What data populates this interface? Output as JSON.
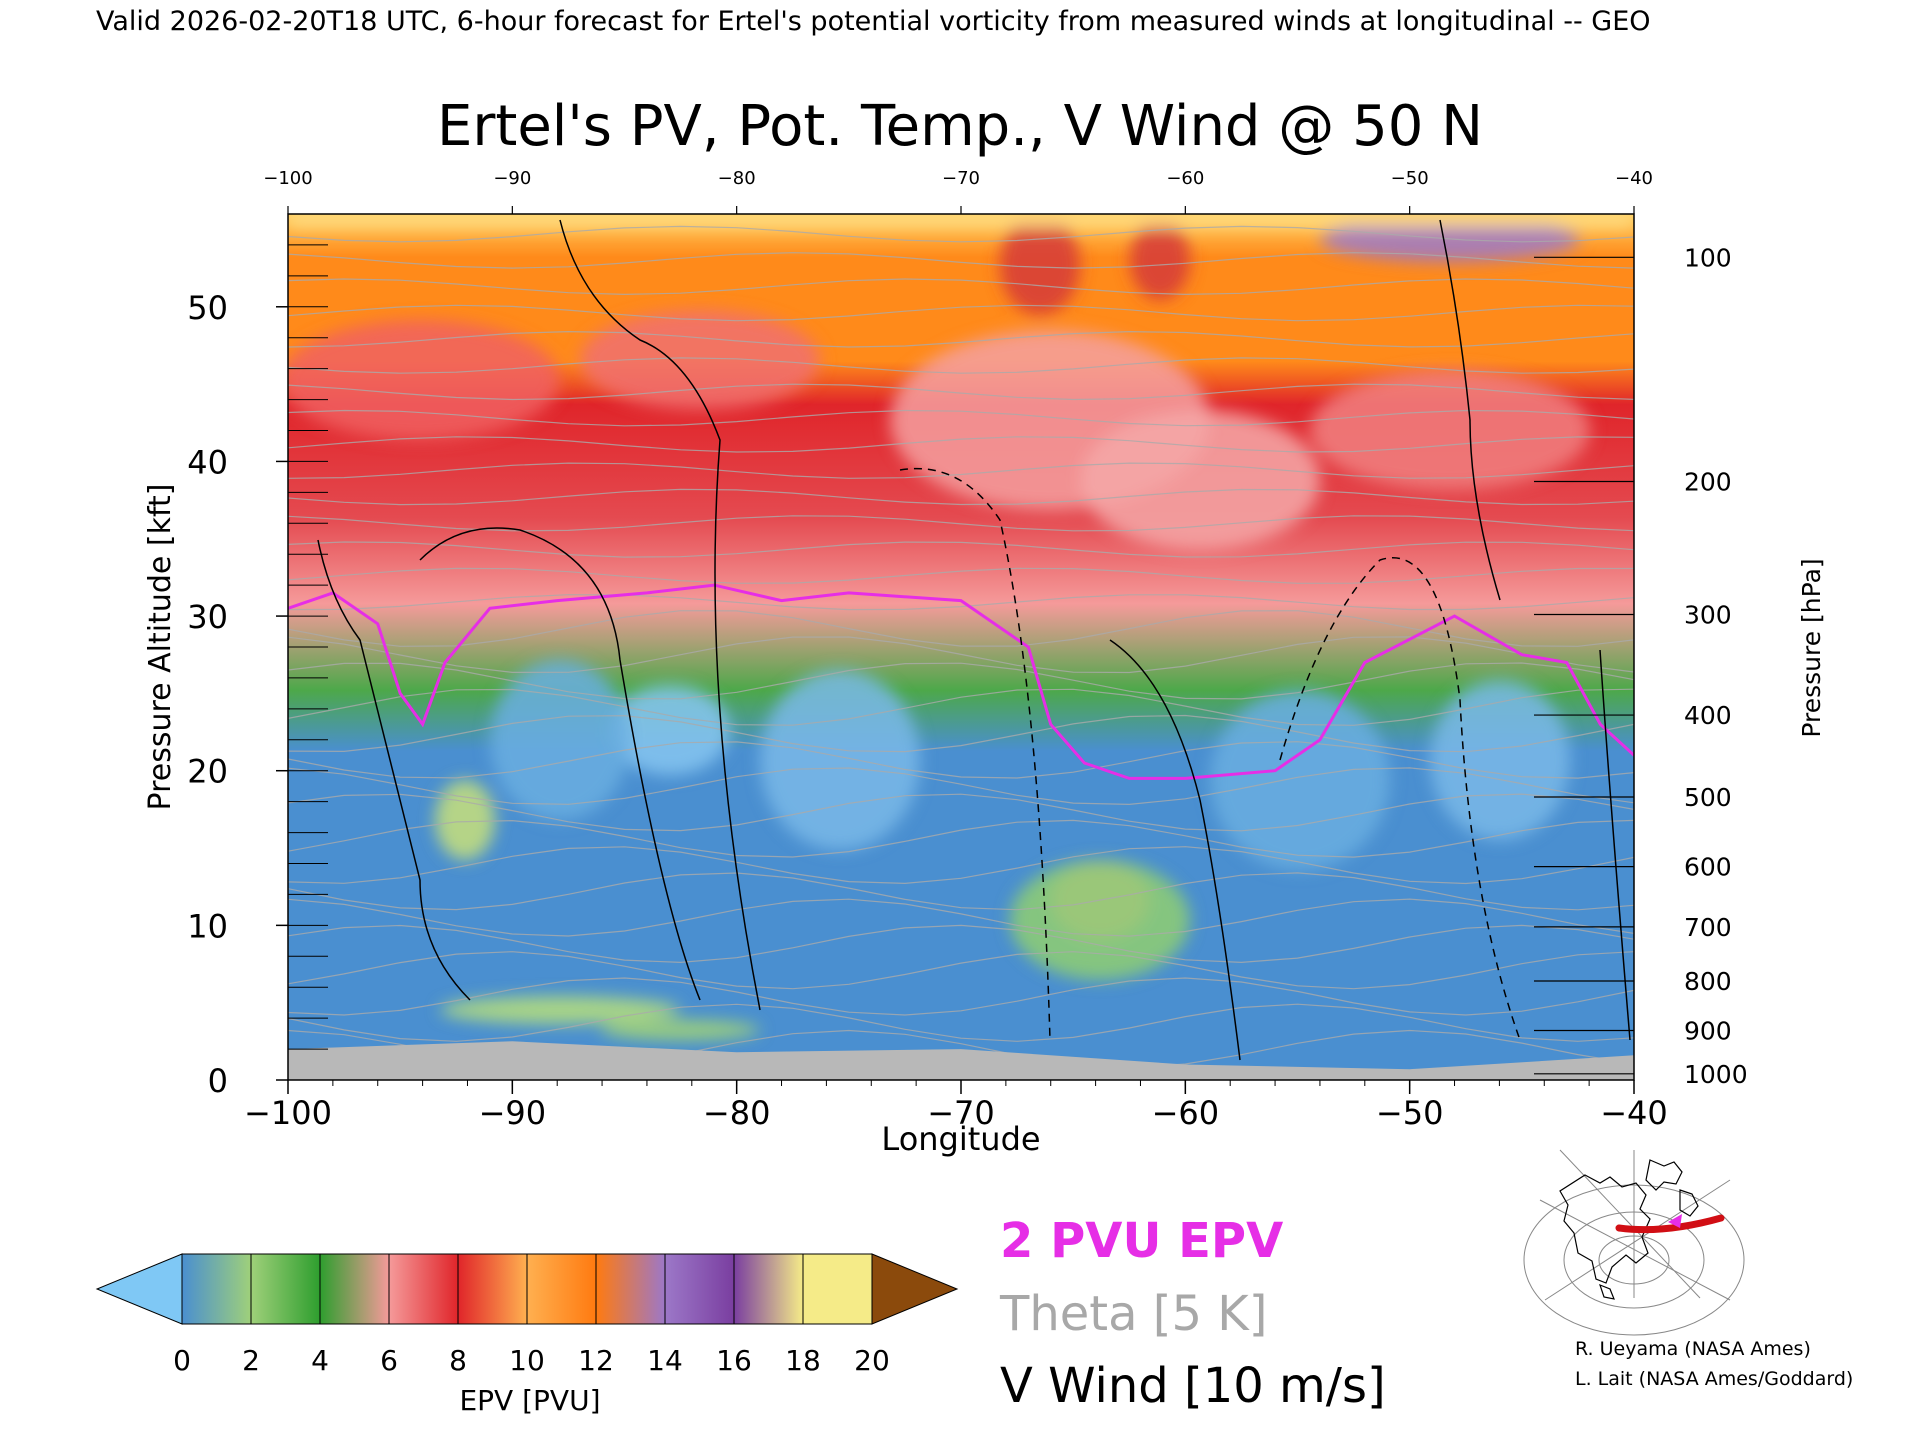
{
  "header": {
    "valid_line": "Valid 2026-02-20T18 UTC, 6-hour forecast for Ertel's potential vorticity from measured winds at longitudinal -- GEO"
  },
  "chart_data": {
    "type": "heatmap",
    "title": "Ertel's PV, Pot. Temp., V Wind @ 50 N",
    "xlabel": "Longitude",
    "ylabel_left": "Pressure Altitude [kft]",
    "ylabel_right": "Pressure [hPa]",
    "xlim": [
      -100,
      -40
    ],
    "ylim_kft": [
      0,
      56
    ],
    "x_ticks": [
      -100,
      -90,
      -80,
      -70,
      -60,
      -50,
      -40
    ],
    "y_ticks_kft": [
      0,
      10,
      20,
      30,
      40,
      50
    ],
    "pressure_ticks": [
      {
        "hpa": 100,
        "kft": 53.2
      },
      {
        "hpa": 200,
        "kft": 38.7
      },
      {
        "hpa": 300,
        "kft": 30.1
      },
      {
        "hpa": 400,
        "kft": 23.6
      },
      {
        "hpa": 500,
        "kft": 18.3
      },
      {
        "hpa": 600,
        "kft": 13.8
      },
      {
        "hpa": 700,
        "kft": 9.9
      },
      {
        "hpa": 800,
        "kft": 6.4
      },
      {
        "hpa": 900,
        "kft": 3.2
      },
      {
        "hpa": 1000,
        "kft": 0.4
      }
    ],
    "colorbar": {
      "label": "EPV [PVU]",
      "ticks": [
        0,
        2,
        4,
        6,
        8,
        10,
        12,
        14,
        16,
        18,
        20
      ],
      "colors": [
        "#4a8fd0",
        "#9fd07a",
        "#2e9e2e",
        "#f59a9a",
        "#e0252a",
        "#ffb050",
        "#ff7a10",
        "#9c78c8",
        "#7a3ea0",
        "#f5eb88"
      ],
      "under_color": "#7fc8f5",
      "over_color": "#8b4a0c"
    },
    "legend": [
      {
        "label": "2 PVU EPV",
        "color": "#e62ee6"
      },
      {
        "label": "Theta [5 K]",
        "color": "#a8a8a8"
      },
      {
        "label": "V Wind [10 m/s]",
        "color": "#000000"
      }
    ],
    "epv_2pvu_contour_kft": [
      {
        "lon": -100,
        "kft": 30.5
      },
      {
        "lon": -98,
        "kft": 31.5
      },
      {
        "lon": -96,
        "kft": 29.5
      },
      {
        "lon": -95,
        "kft": 25
      },
      {
        "lon": -94,
        "kft": 23
      },
      {
        "lon": -93,
        "kft": 27
      },
      {
        "lon": -91,
        "kft": 30.5
      },
      {
        "lon": -88,
        "kft": 31
      },
      {
        "lon": -84,
        "kft": 31.5
      },
      {
        "lon": -81,
        "kft": 32
      },
      {
        "lon": -78,
        "kft": 31
      },
      {
        "lon": -75,
        "kft": 31.5
      },
      {
        "lon": -70,
        "kft": 31
      },
      {
        "lon": -67,
        "kft": 28
      },
      {
        "lon": -66,
        "kft": 23
      },
      {
        "lon": -64.5,
        "kft": 20.5
      },
      {
        "lon": -62.5,
        "kft": 19.5
      },
      {
        "lon": -60,
        "kft": 19.5
      },
      {
        "lon": -56,
        "kft": 20
      },
      {
        "lon": -54,
        "kft": 22
      },
      {
        "lon": -52,
        "kft": 27
      },
      {
        "lon": -48,
        "kft": 30
      },
      {
        "lon": -45,
        "kft": 27.5
      },
      {
        "lon": -43,
        "kft": 27
      },
      {
        "lon": -41.5,
        "kft": 23
      },
      {
        "lon": -40,
        "kft": 21
      }
    ],
    "tropopause_approx_kft": [
      {
        "lon": -100,
        "kft": 34
      },
      {
        "lon": -95,
        "kft": 31
      },
      {
        "lon": -90,
        "kft": 35
      },
      {
        "lon": -85,
        "kft": 35.5
      },
      {
        "lon": -80,
        "kft": 36
      },
      {
        "lon": -75,
        "kft": 35
      },
      {
        "lon": -70,
        "kft": 35
      },
      {
        "lon": -66,
        "kft": 30
      },
      {
        "lon": -63,
        "kft": 27
      },
      {
        "lon": -60,
        "kft": 27
      },
      {
        "lon": -55,
        "kft": 30
      },
      {
        "lon": -50,
        "kft": 34
      },
      {
        "lon": -45,
        "kft": 32
      },
      {
        "lon": -40,
        "kft": 29
      }
    ],
    "surface_kft": [
      {
        "lon": -100,
        "kft": 2
      },
      {
        "lon": -90,
        "kft": 2.5
      },
      {
        "lon": -80,
        "kft": 1.8
      },
      {
        "lon": -70,
        "kft": 2
      },
      {
        "lon": -60,
        "kft": 1
      },
      {
        "lon": -50,
        "kft": 0.7
      },
      {
        "lon": -40,
        "kft": 1.6
      }
    ],
    "map_credits": [
      "R. Ueyama (NASA Ames)",
      "L. Lait (NASA Ames/Goddard)"
    ]
  }
}
